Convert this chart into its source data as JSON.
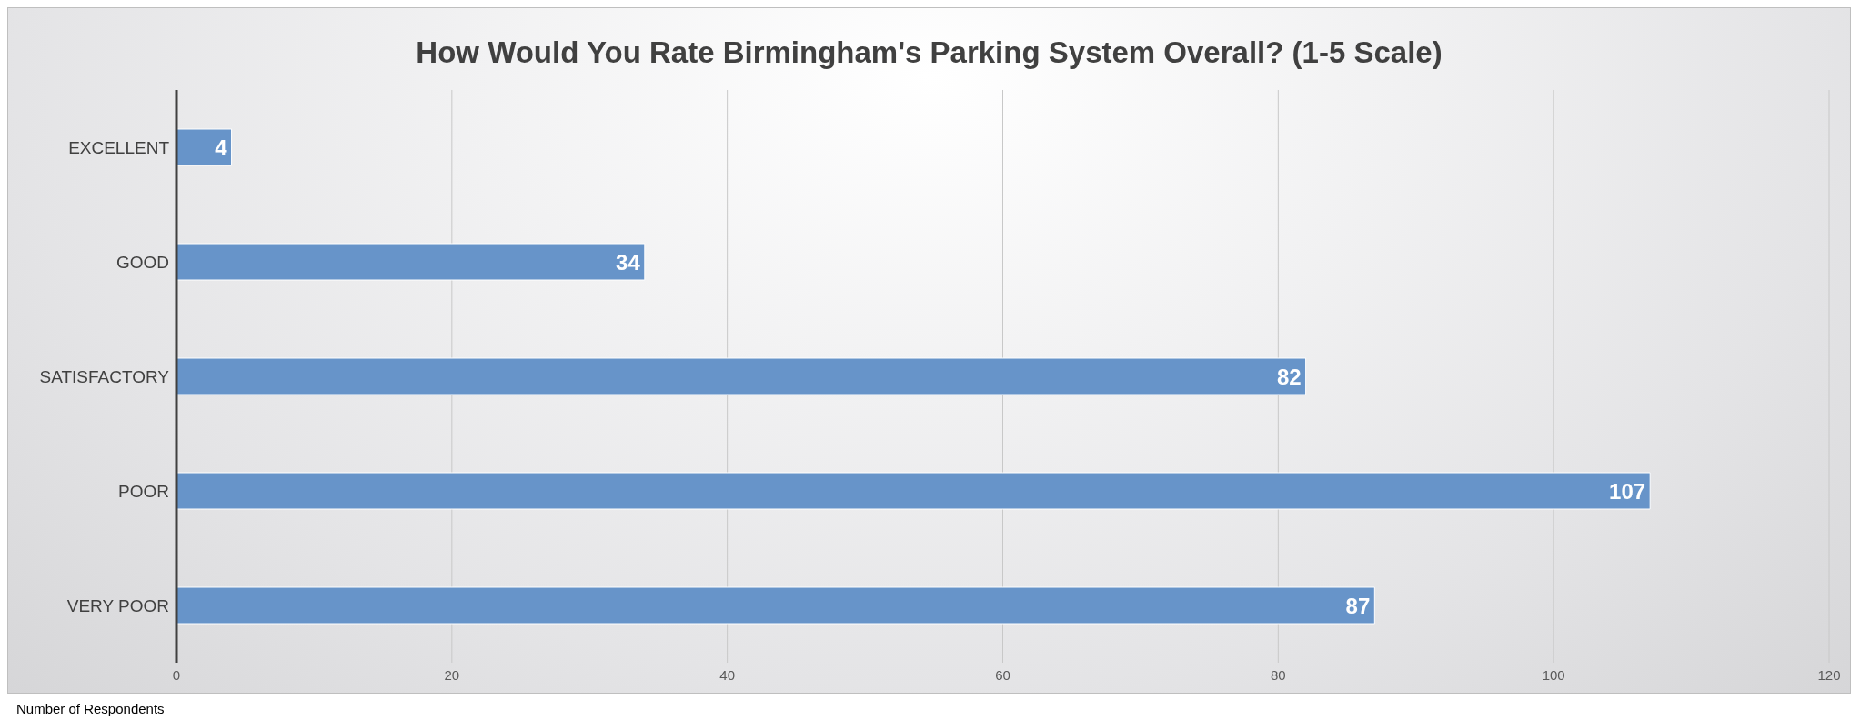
{
  "chart_data": {
    "type": "bar",
    "orientation": "horizontal",
    "title": "How Would You Rate Birmingham's Parking System Overall? (1-5 Scale)",
    "xlabel": "Number of Respondents",
    "categories": [
      "EXCELLENT",
      "GOOD",
      "SATISFACTORY",
      "POOR",
      "VERY POOR"
    ],
    "values": [
      4,
      34,
      82,
      107,
      87
    ],
    "color": "#6794c9",
    "xlim": [
      0,
      120
    ],
    "xticks": [
      0,
      20,
      40,
      60,
      80,
      100,
      120
    ],
    "grid": "x",
    "data_labels": true
  }
}
